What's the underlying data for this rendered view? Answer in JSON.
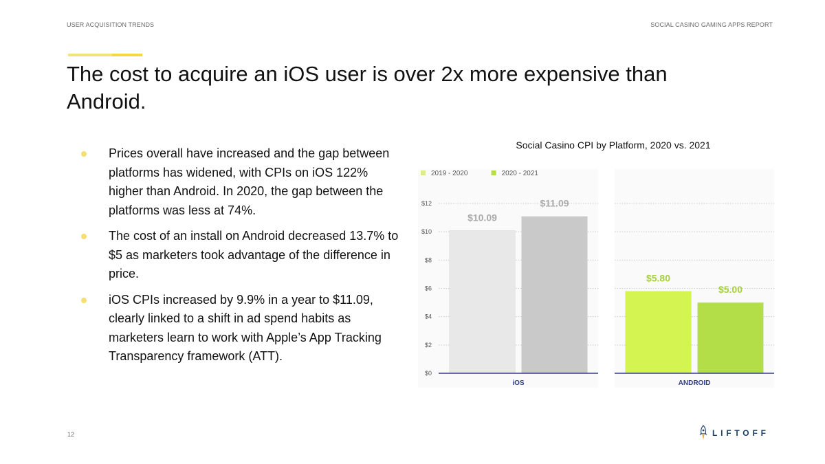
{
  "header": {
    "left": "USER ACQUISITION TRENDS",
    "right": "SOCIAL CASINO GAMING APPS REPORT"
  },
  "title": "The cost to acquire an iOS user is over 2x more expensive than Android.",
  "bullets": [
    "Prices overall have increased and the gap between platforms has widened, with CPIs on iOS 122% higher than Android. In 2020, the gap between the platforms was less at 74%.",
    "The cost of an install on Android decreased 13.7% to $5 as marketers took advantage of the difference in price.",
    "iOS CPIs increased by 9.9% in a year to $11.09, clearly linked to a shift in ad spend habits as marketers learn to work with Apple’s App Tracking Transparency framework (ATT)."
  ],
  "footer": {
    "page_number": "12",
    "logo_text": "LIFTOFF"
  },
  "colors": {
    "accent_yellow": "#f3d640",
    "ios_2020": "#e8e8e8",
    "ios_2021": "#c9c9c9",
    "android_2020": "#d4f551",
    "android_2021": "#b3de47",
    "value_label": "#aaaaaa",
    "android_value_label": "#a7cf3c",
    "axis_line": "#2f3e8a",
    "logo": "#1b3f66"
  },
  "chart_data": {
    "type": "bar",
    "title": "Social Casino CPI by Platform, 2020 vs. 2021",
    "categories": [
      "iOS",
      "ANDROID"
    ],
    "series": [
      {
        "name": "2019 - 2020",
        "values": [
          10.09,
          5.8
        ]
      },
      {
        "name": "2020 - 2021",
        "values": [
          11.09,
          5.0
        ]
      }
    ],
    "value_labels": [
      [
        "$10.09",
        "$5.80"
      ],
      [
        "$11.09",
        "$5.00"
      ]
    ],
    "yticks": [
      0,
      2,
      4,
      6,
      8,
      10,
      12
    ],
    "ytick_labels": [
      "$0",
      "$2",
      "$4",
      "$6",
      "$8",
      "$10",
      "$12"
    ],
    "ylim": [
      0,
      12
    ],
    "grid": true,
    "legend_position": "top-left",
    "xlabel": "",
    "ylabel": ""
  }
}
